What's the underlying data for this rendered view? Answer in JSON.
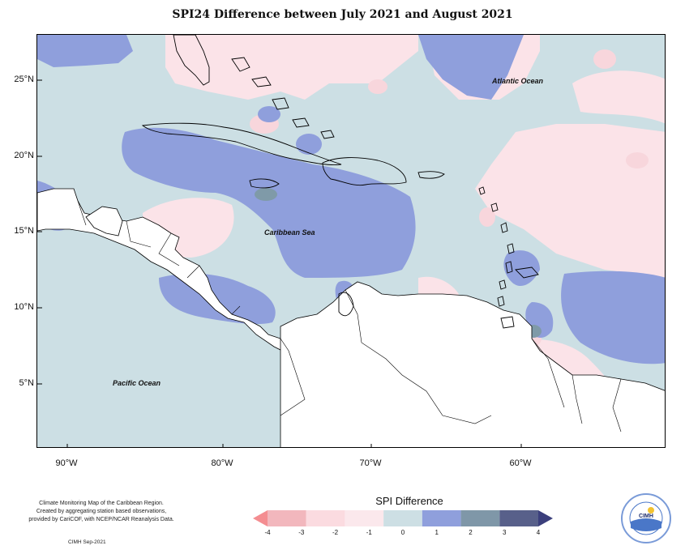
{
  "title": "SPI24 Difference between July 2021 and August 2021",
  "map": {
    "latitude_labels": [
      "25°N",
      "20°N",
      "15°N",
      "10°N",
      "5°N"
    ],
    "longitude_labels": [
      "90°W",
      "80°W",
      "70°W",
      "60°W"
    ],
    "ocean_labels": {
      "atlantic": "Atlantic Ocean",
      "caribbean": "Caribbean Sea",
      "pacific": "Pacific Ocean"
    },
    "colors": {
      "ocean_base": "#ccdfe4",
      "land": "#ffffff",
      "coast": "#000000",
      "dry_light": "#fbe3e8",
      "wet_1": "#8f9fdc",
      "wet_2": "#7f9aa8"
    }
  },
  "legend": {
    "title": "SPI Difference",
    "ticks": [
      "-4",
      "-3",
      "-2",
      "-1",
      "0",
      "1",
      "2",
      "3",
      "4"
    ],
    "colors": [
      "#f48d91",
      "#f2b7bd",
      "#fbdbe0",
      "#fbe8ec",
      "#cddfe4",
      "#8f9fdc",
      "#7f97a8",
      "#58608a",
      "#3b3f7c"
    ]
  },
  "credit": {
    "lines": [
      "Climate Monitoring Map of the Caribbean Region.",
      "Created by aggregating station based observations,",
      "provided by CariCOF, with NCEP/NCAR Reanalysis Data."
    ],
    "date": "CIMH  Sep-2021"
  },
  "logo": {
    "text": "CIMH",
    "ring_top": "Caribbean Institute for",
    "ring_bottom": "Meteorology and Hydrology",
    "colors": {
      "sky": "#4a77c8",
      "sun": "#f2c230",
      "ring": "#7a9bd8"
    }
  }
}
